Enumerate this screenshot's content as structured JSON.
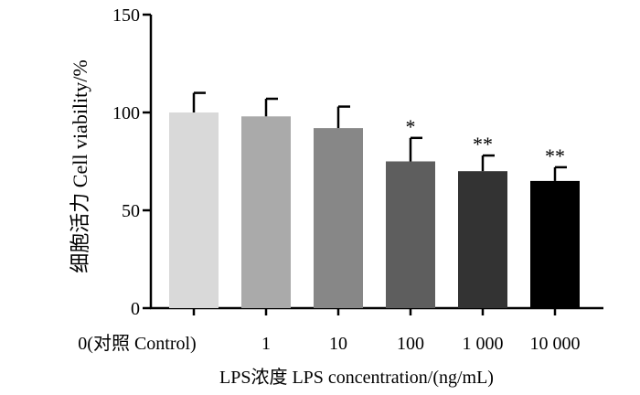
{
  "chart_data": {
    "type": "bar",
    "title": "",
    "xlabel": "LPS浓度 LPS concentration/(ng/mL)",
    "ylabel": "细胞活力  Cell viability/%",
    "ylim": [
      0,
      150
    ],
    "yticks": [
      0,
      50,
      100,
      150
    ],
    "categories": [
      "0(对照 Control)",
      "1",
      "10",
      "100",
      "1 000",
      "10 000"
    ],
    "values": [
      100,
      98,
      92,
      75,
      70,
      65
    ],
    "errors": [
      10,
      9,
      11,
      12,
      8,
      7
    ],
    "significance": [
      "",
      "",
      "",
      "*",
      "**",
      "**"
    ],
    "bar_colors": [
      "#d9d9d9",
      "#aaaaaa",
      "#878787",
      "#5e5e5e",
      "#333333",
      "#000000"
    ],
    "grid": false,
    "legend": "none"
  }
}
